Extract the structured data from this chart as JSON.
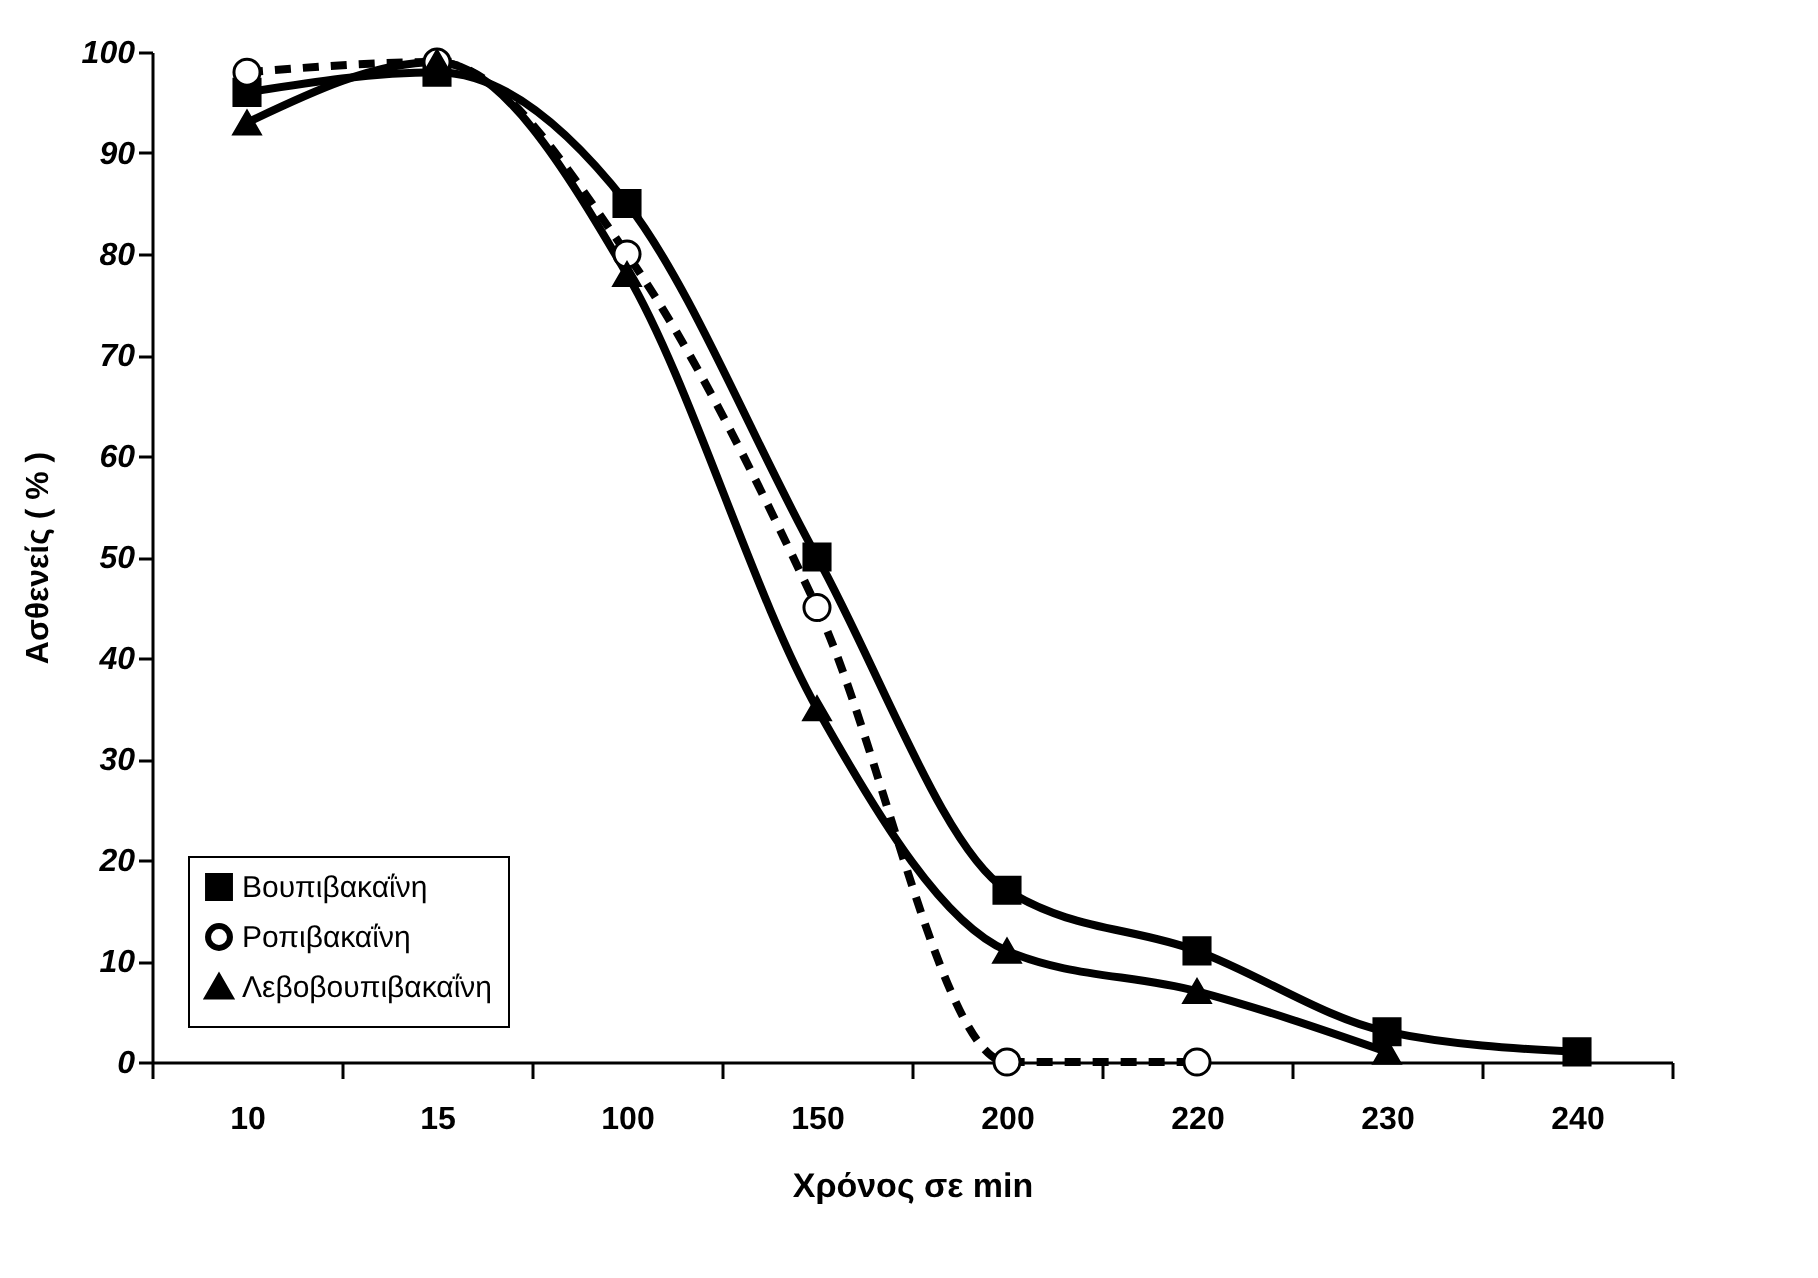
{
  "chart_data": {
    "type": "line",
    "xlabel": "Χρόνος σε min",
    "ylabel": "Ασθενείς ( % )",
    "categories": [
      "10",
      "15",
      "100",
      "150",
      "200",
      "220",
      "230",
      "240"
    ],
    "ylim": [
      0,
      100
    ],
    "yticks": [
      0,
      10,
      20,
      30,
      40,
      50,
      60,
      70,
      80,
      90,
      100
    ],
    "grid": false,
    "legend": "bottom left",
    "series": [
      {
        "name": "Βουπιβακαΐνη",
        "color": "#000000",
        "marker": "square",
        "line_style": "solid",
        "values": [
          96,
          98,
          85,
          50,
          17,
          11,
          3,
          1
        ]
      },
      {
        "name": "Ροπιβακαΐνη",
        "color": "#000000",
        "marker": "circle",
        "line_style": "dashed",
        "values": [
          98,
          99,
          80,
          45,
          0,
          0,
          null,
          null
        ]
      },
      {
        "name": "Λεβοβουπιβακαΐνη",
        "color": "#000000",
        "marker": "triangle",
        "line_style": "solid",
        "values": [
          93,
          99,
          78,
          35,
          11,
          7,
          1,
          null
        ]
      }
    ]
  }
}
